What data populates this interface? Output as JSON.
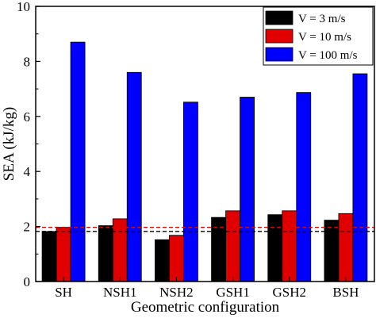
{
  "chart_data": {
    "type": "bar",
    "categories": [
      "SH",
      "NSH1",
      "NSH2",
      "GSH1",
      "GSH2",
      "BSH"
    ],
    "series": [
      {
        "name": "V = 3 m/s",
        "color": "#000000",
        "values": [
          1.82,
          2.03,
          1.52,
          2.33,
          2.43,
          2.23
        ]
      },
      {
        "name": "V = 10 m/s",
        "color": "#e00000",
        "values": [
          1.97,
          2.28,
          1.68,
          2.57,
          2.57,
          2.47
        ]
      },
      {
        "name": "V = 100 m/s",
        "color": "#0000ff",
        "values": [
          8.7,
          7.6,
          6.52,
          6.7,
          6.87,
          7.55
        ]
      }
    ],
    "reference_lines": [
      {
        "value": 1.82,
        "color": "#000000",
        "style": "dashed"
      },
      {
        "value": 1.97,
        "color": "#e00000",
        "style": "dashed"
      }
    ],
    "xlabel": "Geometric configuration",
    "ylabel": "SEA (kJ/kg)",
    "ylim": [
      0,
      10
    ],
    "yticks": [
      "0",
      "2",
      "4",
      "6",
      "8",
      "10"
    ],
    "grid": false,
    "legend_position": "top-right"
  }
}
